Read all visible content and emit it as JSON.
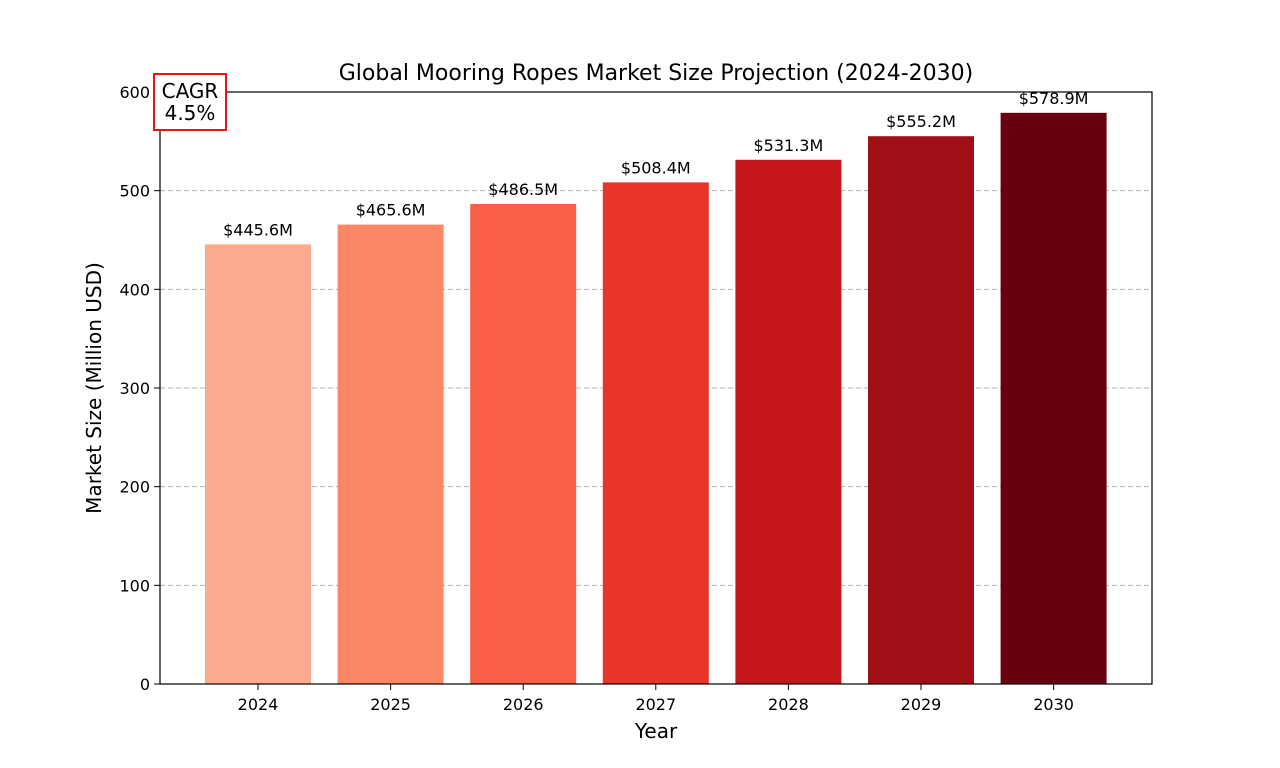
{
  "chart_data": {
    "type": "bar",
    "title": "Global Mooring Ropes Market Size Projection (2024-2030)",
    "xlabel": "Year",
    "ylabel": "Market Size (Million USD)",
    "categories": [
      "2024",
      "2025",
      "2026",
      "2027",
      "2028",
      "2029",
      "2030"
    ],
    "values": [
      445.6,
      465.6,
      486.5,
      508.4,
      531.3,
      555.2,
      578.9
    ],
    "data_labels": [
      "$445.6M",
      "$465.6M",
      "$486.5M",
      "$508.4M",
      "$531.3M",
      "$555.2M",
      "$578.9M"
    ],
    "bar_colors": [
      "#fcaa8e",
      "#fc8767",
      "#f85f44",
      "#e83429",
      "#c5161c",
      "#a00e16",
      "#67000d"
    ],
    "ylim": [
      0,
      600
    ],
    "yticks": [
      0,
      100,
      200,
      300,
      400,
      500,
      600
    ],
    "grid": "y-dashed",
    "annotation": {
      "line1": "CAGR",
      "line2": "4.5%",
      "border_color": "#e8141b"
    }
  }
}
